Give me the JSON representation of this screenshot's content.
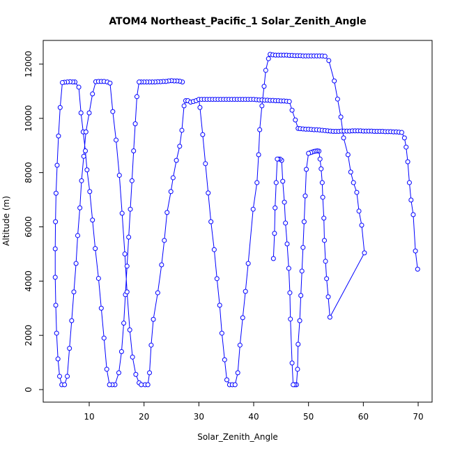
{
  "chart_data": {
    "type": "line",
    "title": "ATOM4 Northeast_Pacific_1 Solar_Zenith_Angle",
    "xlabel": "Solar_Zenith_Angle",
    "ylabel": "Altitude (m)",
    "x": [
      27.0,
      26.5,
      26.0,
      25.5,
      25.0,
      24.5,
      24.0,
      23.5,
      23.0,
      22.5,
      22.0,
      21.5,
      21.0,
      20.5,
      20.0,
      19.5,
      19.1,
      18.7,
      18.4,
      18.1,
      17.8,
      17.5,
      17.2,
      16.9,
      16.6,
      16.3,
      15.9,
      15.4,
      14.7,
      14.2,
      13.7,
      13.2,
      12.7,
      12.2,
      11.7,
      11.1,
      10.6,
      10.1,
      9.6,
      9.3,
      8.9,
      8.5,
      8.1,
      7.4,
      7.0,
      6.5,
      6.0,
      5.5,
      5.1,
      4.7,
      4.4,
      4.15,
      3.95,
      3.85,
      3.8,
      3.8,
      3.9,
      4.05,
      4.3,
      4.6,
      5.0,
      5.5,
      6.0,
      6.4,
      6.8,
      7.2,
      7.6,
      7.9,
      8.3,
      8.6,
      9.0,
      9.4,
      10.0,
      10.6,
      11.2,
      11.7,
      12.2,
      12.7,
      13.3,
      13.8,
      14.3,
      14.9,
      15.5,
      16.0,
      16.5,
      16.9,
      17.4,
      17.9,
      18.5,
      19.1,
      19.5,
      20.2,
      20.7,
      21.0,
      21.3,
      21.7,
      22.5,
      23.2,
      23.7,
      24.2,
      24.9,
      25.3,
      25.9,
      26.5,
      26.9,
      27.3,
      27.6,
      28.0,
      28.5,
      29.0,
      29.5,
      30.0,
      30.2,
      30.7,
      31.2,
      31.7,
      32.2,
      32.8,
      33.3,
      33.8,
      34.2,
      34.7,
      35.1,
      35.6,
      36.1,
      36.6,
      37.1,
      37.5,
      38.0,
      38.5,
      39.0,
      39.9,
      40.6,
      40.9,
      41.1,
      41.5,
      41.9,
      42.2,
      42.7,
      43.0,
      43.5,
      44.0,
      44.5,
      45.0,
      45.5,
      46.0,
      46.5,
      47.0,
      47.5,
      48.0,
      48.5,
      49.0,
      49.5,
      50.0,
      50.5,
      51.0,
      51.5,
      52.0,
      52.5,
      53.0,
      53.7,
      54.7,
      55.3,
      55.9,
      56.4,
      57.2,
      57.7,
      58.2,
      58.8,
      59.2,
      59.7,
      60.2,
      53.9,
      53.6,
      53.3,
      53.1,
      52.9,
      52.8,
      52.6,
      52.5,
      52.3,
      52.1,
      51.9,
      51.6,
      51.3,
      51.0,
      50.7,
      50.4,
      50.0,
      49.6,
      49.4,
      49.2,
      49.0,
      48.8,
      48.6,
      48.4,
      48.1,
      48.0,
      47.8,
      47.5,
      47.2,
      47.0,
      46.7,
      46.6,
      46.4,
      46.1,
      45.8,
      45.6,
      45.3,
      45.1,
      44.8,
      44.5,
      44.3,
      44.1,
      43.9,
      43.8,
      43.6,
      null,
      30.5,
      31.0,
      31.5,
      32.0,
      32.5,
      33.0,
      33.5,
      34.0,
      34.5,
      35.0,
      35.5,
      36.0,
      36.5,
      37.0,
      37.5,
      38.0,
      38.5,
      39.0,
      39.5,
      40.0,
      40.5,
      41.0,
      41.5,
      42.0,
      42.5,
      43.0,
      43.5,
      44.0,
      44.5,
      45.0,
      45.5,
      46.0,
      46.5,
      47.0,
      47.6,
      48.1,
      48.5,
      49.0,
      49.5,
      50.0,
      50.5,
      51.0,
      51.5,
      52.0,
      52.5,
      53.0,
      53.5,
      54.0,
      54.5,
      55.0,
      55.5,
      56.0,
      56.5,
      57.0,
      57.5,
      58.0,
      58.5,
      59.0,
      59.5,
      60.0,
      60.5,
      61.0,
      61.5,
      62.0,
      62.5,
      63.0,
      63.5,
      64.0,
      64.5,
      65.0,
      65.5,
      66.0,
      66.5,
      67.0,
      67.5,
      67.8,
      68.1,
      68.4,
      68.7,
      69.1,
      69.5,
      69.9
    ],
    "series": [
      {
        "color": "#0000ff",
        "values": [
          11340,
          11370,
          11380,
          11380,
          11390,
          11380,
          11360,
          11360,
          11350,
          11350,
          11340,
          11340,
          11340,
          11340,
          11340,
          11340,
          11340,
          10800,
          9800,
          8800,
          7700,
          6650,
          5620,
          4550,
          3500,
          2450,
          1400,
          620,
          180,
          180,
          180,
          750,
          1900,
          3000,
          4100,
          5200,
          6250,
          7300,
          8100,
          8800,
          9500,
          10200,
          11150,
          11340,
          11340,
          11350,
          11340,
          11330,
          11320,
          10400,
          9350,
          8270,
          7240,
          6190,
          5190,
          4140,
          3110,
          2080,
          1130,
          490,
          180,
          180,
          490,
          1520,
          2540,
          3600,
          4650,
          5680,
          6700,
          7700,
          8600,
          9500,
          10200,
          10900,
          11350,
          11360,
          11360,
          11360,
          11340,
          11300,
          10250,
          9200,
          7900,
          6500,
          5000,
          3600,
          2200,
          1200,
          560,
          250,
          180,
          180,
          180,
          620,
          1640,
          2590,
          3570,
          4600,
          5500,
          6530,
          7300,
          7810,
          8450,
          8970,
          9560,
          10460,
          10650,
          10650,
          10600,
          10620,
          10650,
          10700,
          10400,
          9400,
          8330,
          7250,
          6190,
          5160,
          4090,
          3110,
          2080,
          1100,
          360,
          180,
          180,
          180,
          620,
          1640,
          2650,
          3620,
          4650,
          6650,
          7630,
          8660,
          9580,
          10460,
          11180,
          11770,
          12200,
          12360,
          12340,
          12330,
          12330,
          12330,
          12330,
          12330,
          12320,
          12320,
          12310,
          12310,
          12310,
          12300,
          12300,
          12300,
          12300,
          12300,
          12300,
          12300,
          12300,
          12290,
          12130,
          11380,
          10710,
          10050,
          9280,
          8660,
          8020,
          7630,
          7270,
          6580,
          6060,
          5040,
          2670,
          3420,
          4090,
          4730,
          5500,
          6320,
          7090,
          7630,
          8140,
          8500,
          8790,
          8800,
          8790,
          8780,
          8760,
          8740,
          8710,
          8120,
          7140,
          6190,
          5240,
          4370,
          3470,
          2540,
          1670,
          750,
          180,
          180,
          180,
          980,
          2600,
          3570,
          4470,
          5370,
          6140,
          6910,
          7680,
          8450,
          8500,
          8500,
          8500,
          7630,
          6700,
          5760,
          4830,
          null,
          10700,
          10700,
          10700,
          10700,
          10700,
          10700,
          10700,
          10700,
          10700,
          10700,
          10700,
          10700,
          10700,
          10700,
          10700,
          10700,
          10700,
          10700,
          10700,
          10700,
          10690,
          10680,
          10680,
          10670,
          10670,
          10660,
          10660,
          10650,
          10650,
          10640,
          10640,
          10630,
          10620,
          10300,
          9940,
          9630,
          9620,
          9610,
          9600,
          9600,
          9590,
          9580,
          9580,
          9570,
          9560,
          9550,
          9540,
          9530,
          9520,
          9520,
          9520,
          9530,
          9530,
          9530,
          9530,
          9540,
          9540,
          9540,
          9540,
          9530,
          9530,
          9530,
          9530,
          9520,
          9520,
          9520,
          9520,
          9510,
          9510,
          9510,
          9500,
          9500,
          9490,
          9480,
          9280,
          8940,
          8400,
          7630,
          6990,
          6450,
          5110,
          4440
        ]
      }
    ],
    "xlim": [
      1.61,
      72.54
    ],
    "ylim": [
      -462,
      12873
    ],
    "xticks": [
      10,
      20,
      30,
      40,
      50,
      60,
      70
    ],
    "yticks": [
      0,
      2000,
      4000,
      6000,
      8000,
      10000,
      12000
    ],
    "marker": "circle"
  }
}
